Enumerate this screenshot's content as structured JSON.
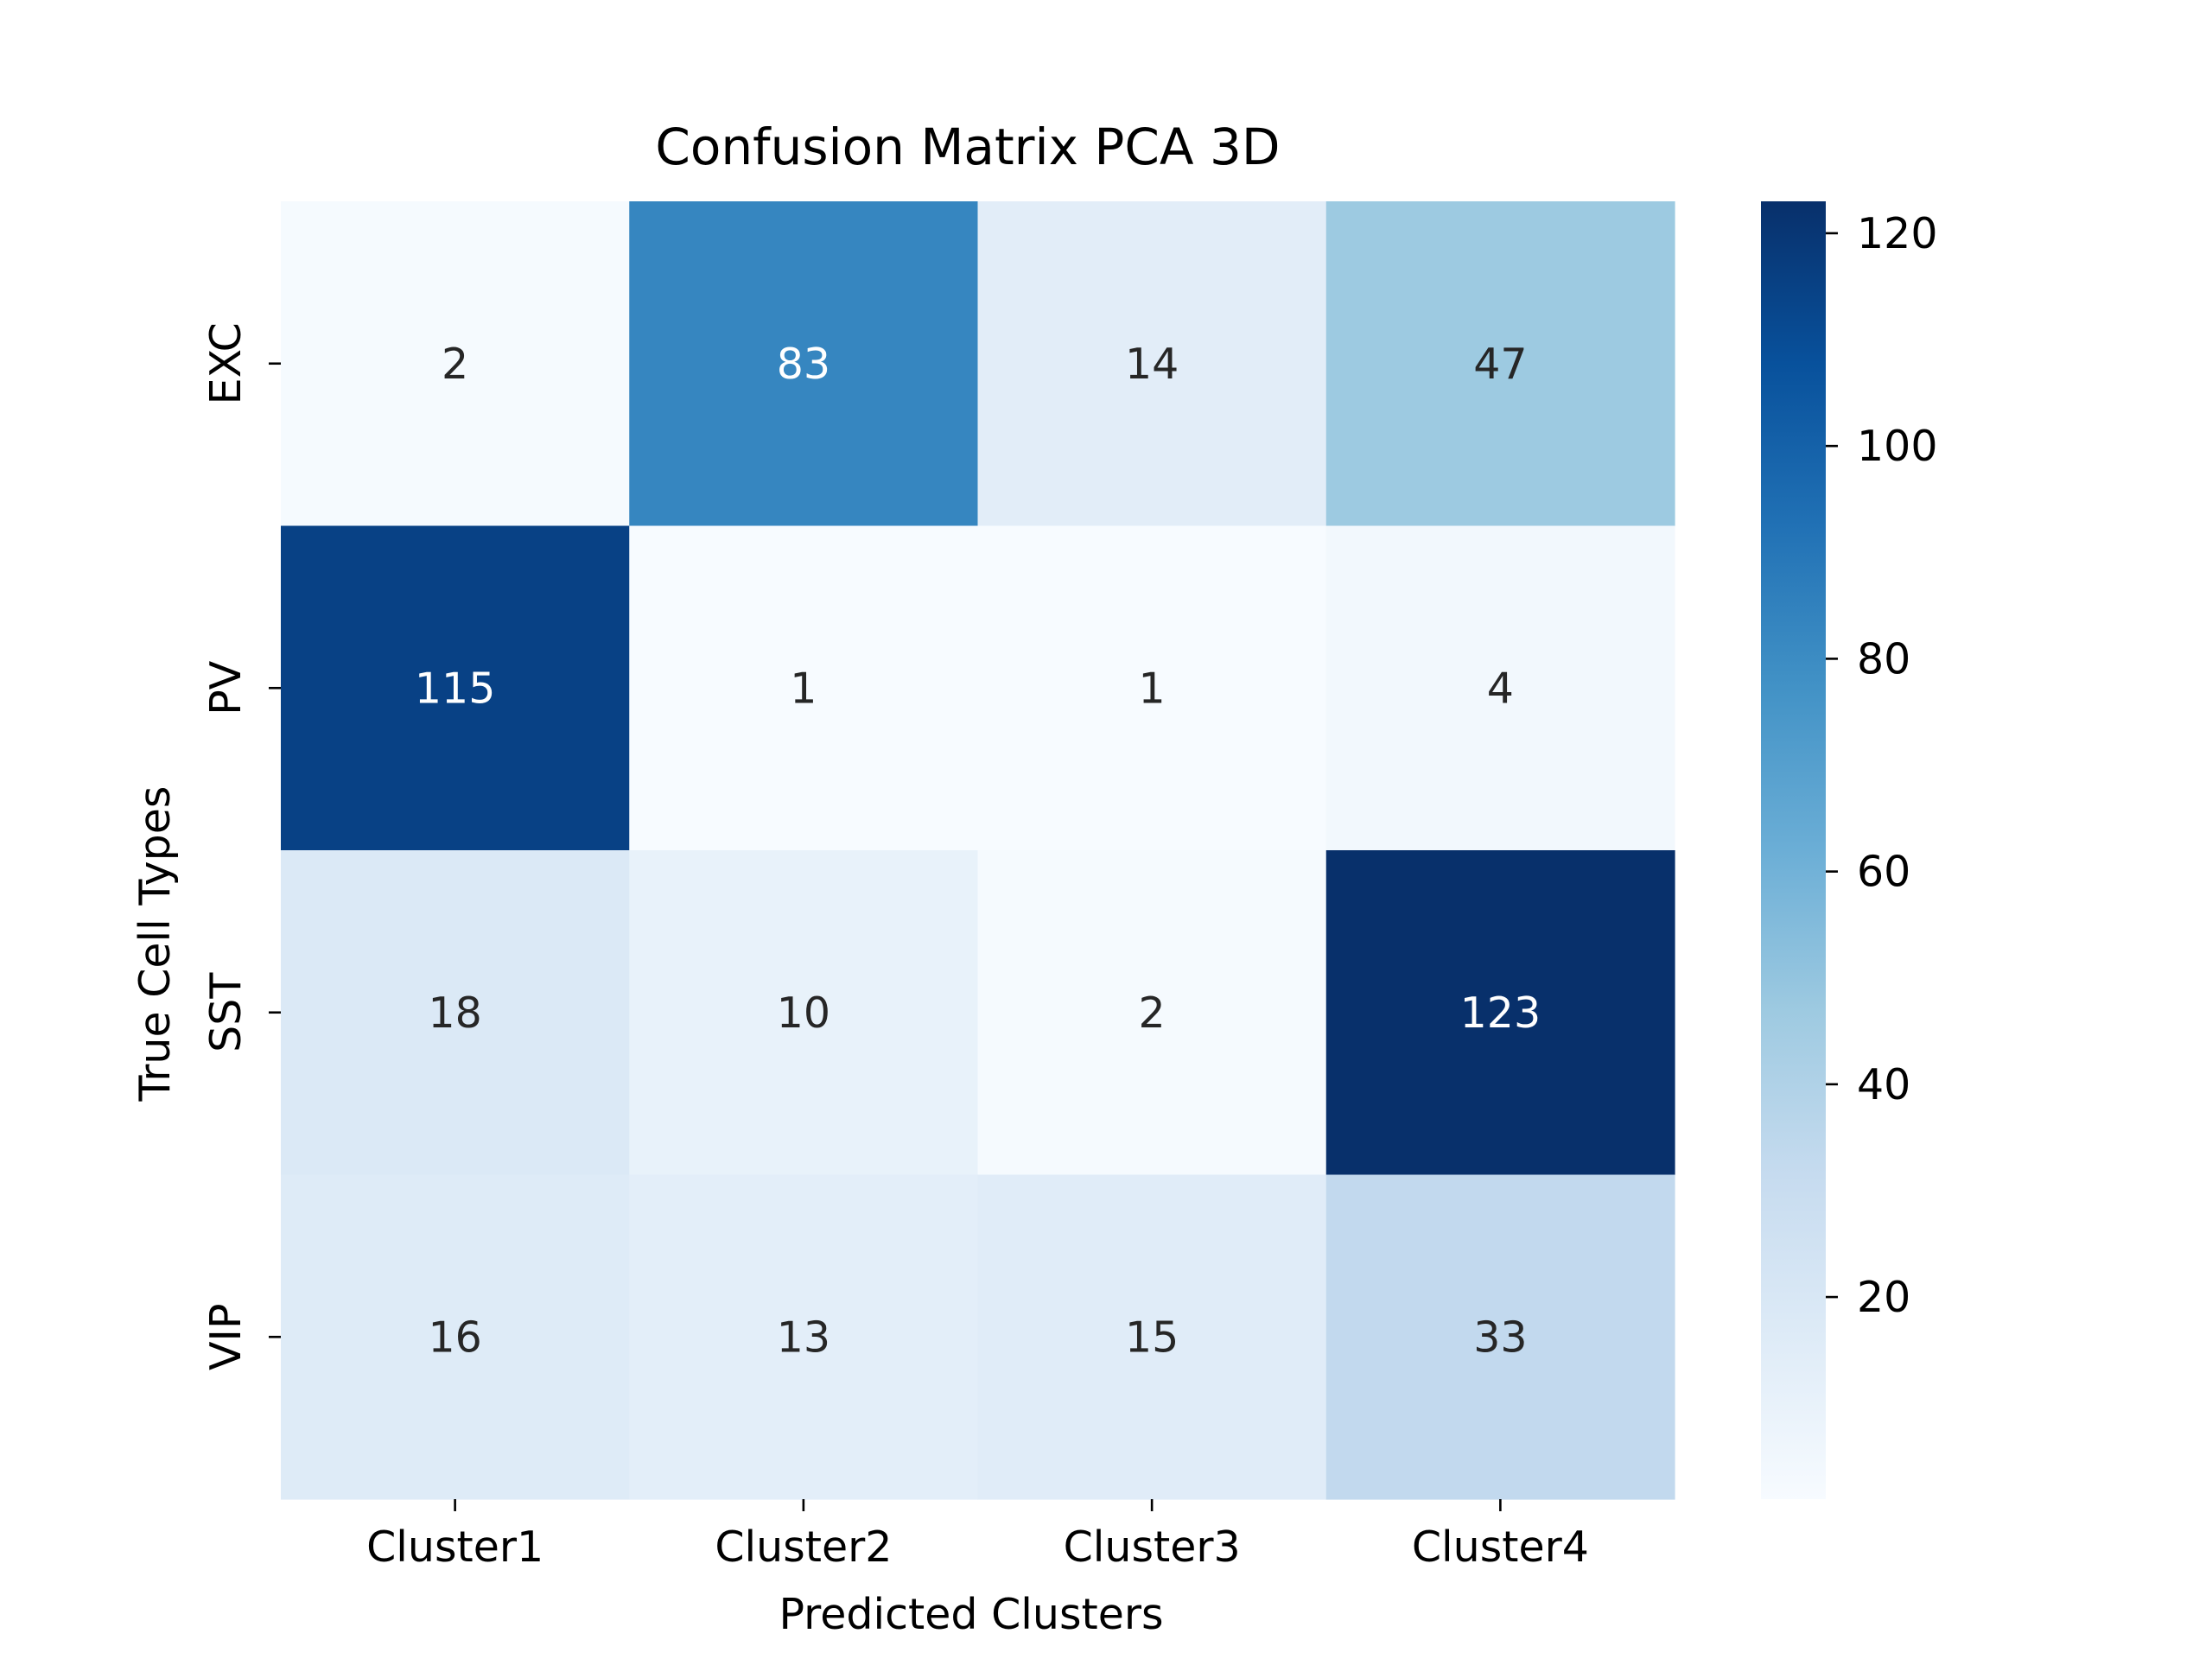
{
  "chart_data": {
    "type": "heatmap",
    "title": "Confusion Matrix PCA 3D",
    "xlabel": "Predicted Clusters",
    "ylabel": "True Cell Types",
    "x_categories": [
      "Cluster1",
      "Cluster2",
      "Cluster3",
      "Cluster4"
    ],
    "y_categories": [
      "EXC",
      "PV",
      "SST",
      "VIP"
    ],
    "values": [
      [
        2,
        83,
        14,
        47
      ],
      [
        115,
        1,
        1,
        4
      ],
      [
        18,
        10,
        2,
        123
      ],
      [
        16,
        13,
        15,
        33
      ]
    ],
    "colormap": "Blues",
    "colorbar": {
      "min": 1,
      "max": 123,
      "ticks": [
        20,
        40,
        60,
        80,
        100,
        120
      ]
    },
    "annotations": true,
    "grid": false
  }
}
